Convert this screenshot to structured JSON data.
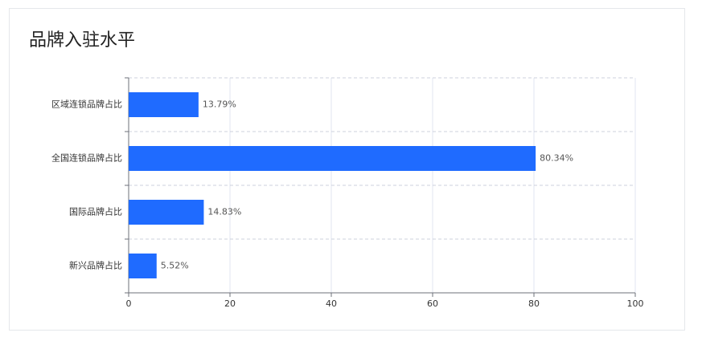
{
  "chart_data": {
    "type": "bar",
    "orientation": "horizontal",
    "title": "品牌入驻水平",
    "categories": [
      "区域连锁品牌占比",
      "全国连锁品牌占比",
      "国际品牌占比",
      "新兴品牌占比"
    ],
    "values": [
      13.79,
      80.34,
      14.83,
      5.52
    ],
    "value_labels": [
      "13.79%",
      "80.34%",
      "14.83%",
      "5.52%"
    ],
    "color": "#1f6bff",
    "xlim": [
      0,
      100
    ],
    "xticks": [
      0,
      20,
      40,
      60,
      80,
      100
    ],
    "grid": true
  }
}
